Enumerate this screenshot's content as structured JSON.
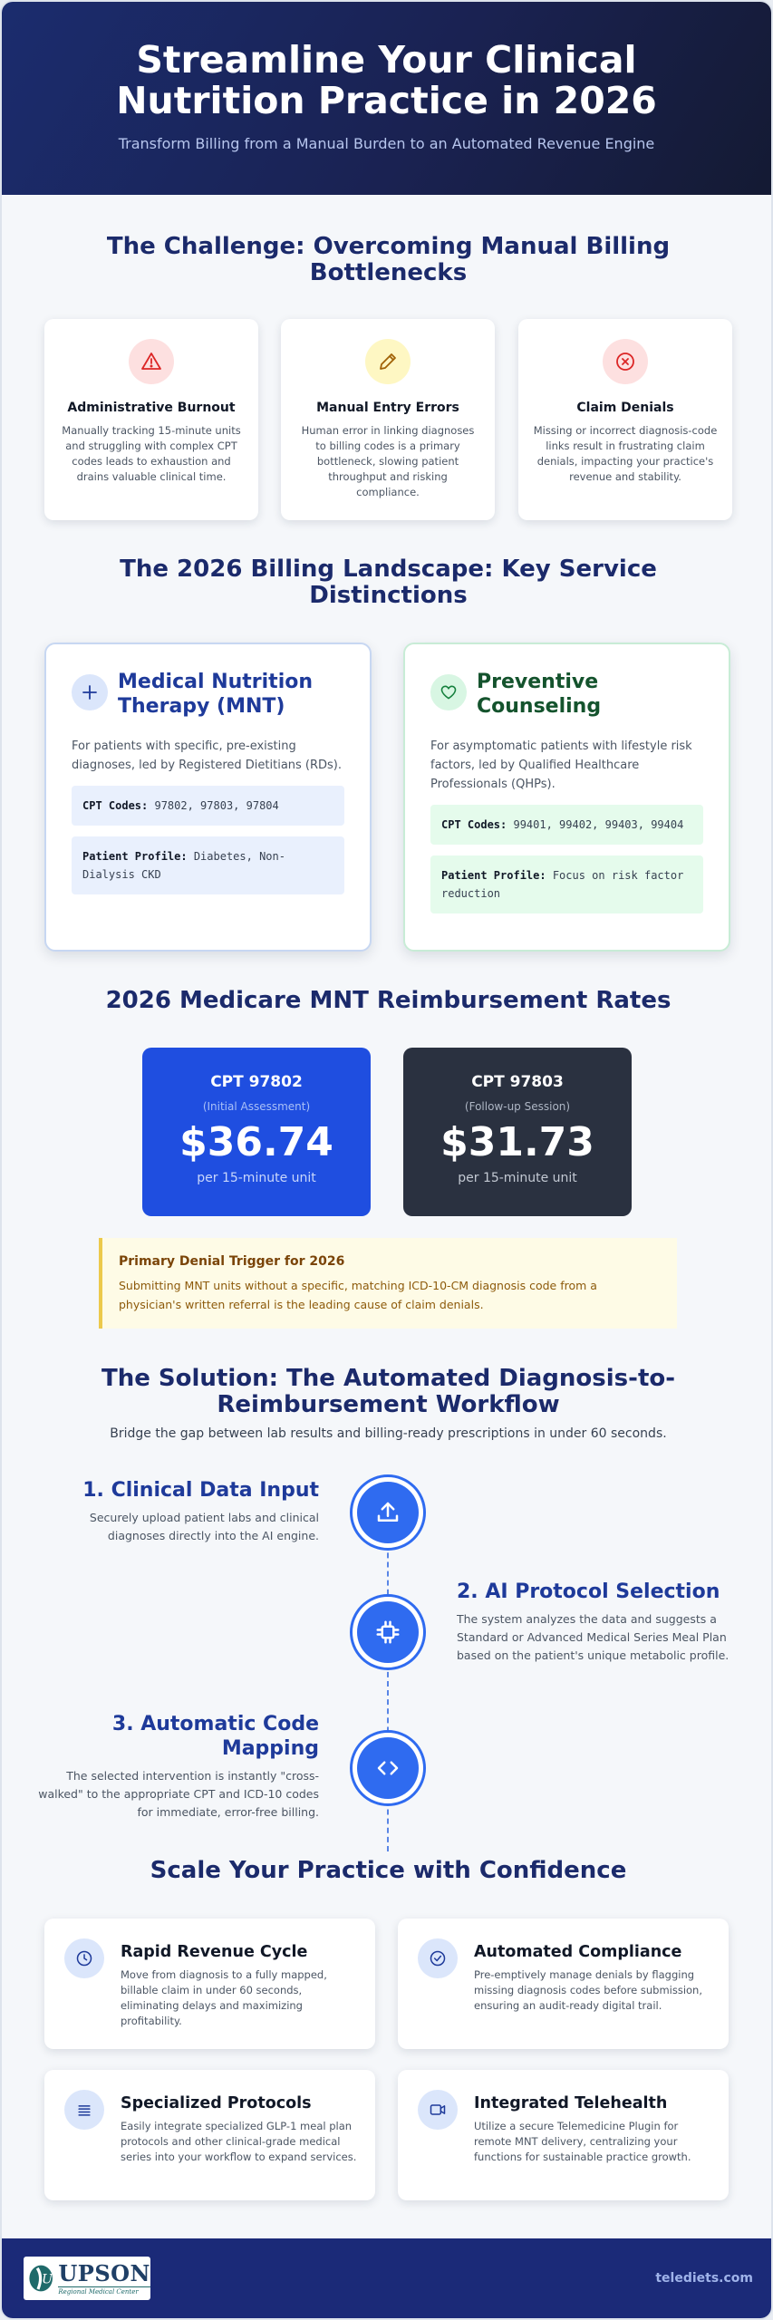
{
  "hero": {
    "title_line1": "Streamline Your Clinical",
    "title_line2": "Nutrition Practice in 2026",
    "subtitle": "Transform Billing from a Manual Burden to an Automated Revenue Engine"
  },
  "challenge": {
    "title_line1": "The Challenge: Overcoming Manual Billing",
    "title_line2": "Bottlenecks",
    "cards": [
      {
        "icon": "warning-triangle-icon",
        "title": "Administrative Burnout",
        "text": "Manually tracking 15-minute units and struggling with complex CPT codes leads to exhaustion and drains valuable clinical time.",
        "color": "#dc2626"
      },
      {
        "icon": "pencil-icon",
        "title": "Manual Entry Errors",
        "text": "Human error in linking diagnoses to billing codes is a primary bottleneck, slowing patient throughput and risking compliance.",
        "color": "#a16207"
      },
      {
        "icon": "x-circle-icon",
        "title": "Claim Denials",
        "text": "Missing or incorrect diagnosis-code links result in frustrating claim denials, impacting your practice's revenue and stability.",
        "color": "#dc2626"
      }
    ]
  },
  "landscape": {
    "title_line1": "The 2026 Billing Landscape: Key Service",
    "title_line2": "Distinctions",
    "mnt": {
      "icon": "plus-icon",
      "title_line1": "Medical Nutrition",
      "title_line2": "Therapy (MNT)",
      "desc": "For patients with specific, pre-existing diagnoses, led by Registered Dietitians (RDs).",
      "codes_label": "CPT Codes:",
      "codes": "97802, 97803, 97804",
      "profile_label": "Patient Profile:",
      "profile": "Diabetes, Non-Dialysis CKD"
    },
    "preventive": {
      "icon": "heart-icon",
      "title_line1": "Preventive",
      "title_line2": "Counseling",
      "desc": "For asymptomatic patients with lifestyle risk factors, led by Qualified Healthcare Professionals (QHPs).",
      "codes_label": "CPT Codes:",
      "codes": "99401, 99402, 99403, 99404",
      "profile_label": "Patient Profile:",
      "profile": "Focus on risk factor reduction"
    }
  },
  "rates": {
    "title": "2026 Medicare MNT Reimbursement Rates",
    "cards": [
      {
        "code": "CPT 97802",
        "kind": "(Initial Assessment)",
        "amount": "$36.74",
        "unit": "per 15-minute unit",
        "color": "#1f4ee0"
      },
      {
        "code": "CPT 97803",
        "kind": "(Follow-up Session)",
        "amount": "$31.73",
        "unit": "per 15-minute unit",
        "color": "#2a3140"
      }
    ],
    "alert": {
      "title": "Primary Denial Trigger for 2026",
      "text": "Submitting MNT units without a specific, matching ICD-10-CM diagnosis code from a physician's written referral is the leading cause of claim denials."
    }
  },
  "solution": {
    "title_line1": "The Solution: The Automated Diagnosis-to-",
    "title_line2": "Reimbursement Workflow",
    "intro": "Bridge the gap between lab results and billing-ready prescriptions in under 60 seconds.",
    "steps": [
      {
        "icon": "upload-icon",
        "title": "1. Clinical Data Input",
        "text": "Securely upload patient labs and clinical diagnoses directly into the AI engine."
      },
      {
        "icon": "cpu-chip-icon",
        "title": "2. AI Protocol Selection",
        "text": "The system analyzes the data and suggests a Standard or Advanced Medical Series Meal Plan based on the patient's unique metabolic profile."
      },
      {
        "icon": "code-brackets-icon",
        "title_line1": "3. Automatic Code",
        "title_line2": "Mapping",
        "text": "The selected intervention is instantly \"cross-walked\" to the appropriate CPT and ICD-10 codes for immediate, error-free billing."
      }
    ]
  },
  "scale": {
    "title": "Scale Your Practice with Confidence",
    "features": [
      {
        "icon": "clock-icon",
        "title": "Rapid Revenue Cycle",
        "text": "Move from diagnosis to a fully mapped, billable claim in under 60 seconds, eliminating delays and maximizing profitability."
      },
      {
        "icon": "check-circle-icon",
        "title": "Automated Compliance",
        "text": "Pre-emptively manage denials by flagging missing diagnosis codes before submission, ensuring an audit-ready digital trail."
      },
      {
        "icon": "list-icon",
        "title": "Specialized Protocols",
        "text": "Easily integrate specialized GLP-1 meal plan protocols and other clinical-grade medical series into your workflow to expand services."
      },
      {
        "icon": "video-camera-icon",
        "title": "Integrated Telehealth",
        "text": "Utilize a secure Telemedicine Plugin for remote MNT delivery, centralizing your functions for sustainable practice growth."
      }
    ]
  },
  "footer": {
    "logo_word": "UPSON",
    "logo_tagline": "Regional Medical Center",
    "site": "telediets.com"
  }
}
